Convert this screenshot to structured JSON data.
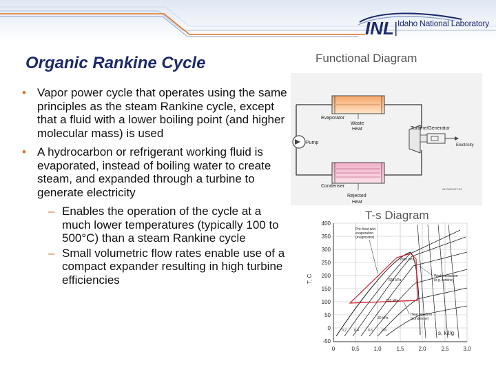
{
  "slide": {
    "title": "Organic Rankine Cycle",
    "logo_text": "Idaho National Laboratory",
    "bullets": [
      {
        "text": "Vapor power cycle that operates using the same principles as the steam Rankine cycle, except that a fluid with a lower boiling point (and higher molecular mass) is used"
      },
      {
        "text": "A hydrocarbon or refrigerant working fluid is evaporated, instead of boiling water to create steam, and expanded through a turbine to generate electricity"
      }
    ],
    "sub_bullets": [
      {
        "text": "Enables the operation of the cycle at a much lower temperatures (typically 100 to 500°C) than a steam Rankine cycle"
      },
      {
        "text": "Small volumetric flow rates enable use of a compact expander resulting in high turbine efficiencies"
      }
    ]
  },
  "functional_diagram": {
    "heading": "Functional Diagram",
    "labels": {
      "evaporator": "Evaporator",
      "waste_heat_1": "Waste",
      "waste_heat_2": "Heat",
      "turbine": "Turbine/Generator",
      "pump": "Pump",
      "electricity": "Electricity",
      "condenser": "Condenser",
      "rejected_1": "Rejected",
      "rejected_2": "Heat",
      "code": "08-GA50127-32"
    }
  },
  "ts_diagram": {
    "heading": "T-s Diagram",
    "ylabel": "T, C",
    "xlabel": "s, kJ/g",
    "y_ticks": [
      "400",
      "350",
      "300",
      "250",
      "200",
      "150",
      "100",
      "50",
      "0",
      "-50"
    ],
    "x_ticks": [
      "0",
      "0,5",
      "1,0",
      "1,5",
      "2,0",
      "2,5",
      "3,0"
    ],
    "curve_labels": [
      "0.2",
      "0.4",
      "0.6",
      "0.8"
    ],
    "pressure_labels": [
      "2600 kPa",
      "820 kPa",
      "220 kPa",
      "30 kPa"
    ],
    "annotations": {
      "preheat_1": "Pre-heat and",
      "preheat_2": "evaporation",
      "preheat_3": "(evaporator)",
      "work_1": "Work extraction",
      "work_2": "(e.g. turbine)",
      "heat_1": "Heat rejection",
      "heat_2": "(condenser)"
    }
  }
}
